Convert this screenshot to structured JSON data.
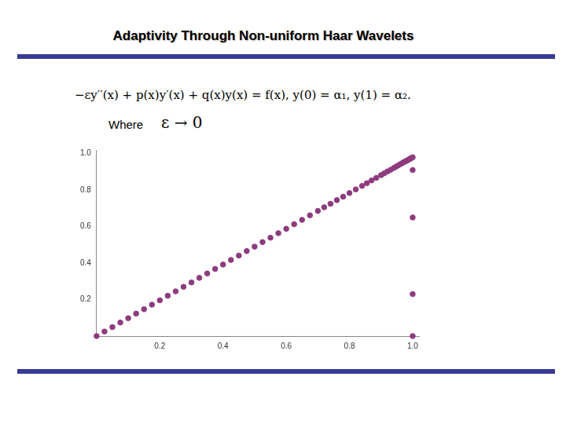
{
  "slide": {
    "title": "Adaptivity Through Non-uniform Haar Wavelets",
    "equation": "−εy′′(x) + p(x)y′(x) + q(x)y(x) = f(x),     y(0) = α₁, y(1) = α₂.",
    "where_label": "Where",
    "where_expr": "ε → 0"
  },
  "chart_data": {
    "type": "scatter",
    "color": "#8e3b7e",
    "marker": "circle",
    "grid": false,
    "x": [
      0,
      0.025,
      0.05,
      0.075,
      0.1,
      0.125,
      0.15,
      0.175,
      0.2,
      0.225,
      0.25,
      0.275,
      0.3,
      0.325,
      0.35,
      0.375,
      0.4,
      0.425,
      0.45,
      0.475,
      0.5,
      0.525,
      0.55,
      0.575,
      0.6,
      0.625,
      0.65,
      0.675,
      0.7,
      0.72,
      0.74,
      0.76,
      0.78,
      0.8,
      0.82,
      0.84,
      0.855,
      0.87,
      0.885,
      0.9,
      0.91,
      0.92,
      0.93,
      0.94,
      0.948,
      0.955,
      0.962,
      0.968,
      0.973,
      0.977,
      0.981,
      0.985,
      0.988,
      0.991,
      0.994,
      0.997,
      1,
      1,
      1,
      1,
      1
    ],
    "values": [
      0,
      0.025,
      0.049,
      0.074,
      0.098,
      0.123,
      0.147,
      0.172,
      0.196,
      0.221,
      0.245,
      0.27,
      0.294,
      0.319,
      0.343,
      0.368,
      0.392,
      0.417,
      0.441,
      0.466,
      0.49,
      0.515,
      0.539,
      0.564,
      0.588,
      0.613,
      0.637,
      0.662,
      0.686,
      0.706,
      0.725,
      0.745,
      0.764,
      0.784,
      0.804,
      0.823,
      0.838,
      0.853,
      0.867,
      0.882,
      0.892,
      0.902,
      0.911,
      0.921,
      0.929,
      0.936,
      0.943,
      0.949,
      0.954,
      0.957,
      0.961,
      0.965,
      0.968,
      0.971,
      0.974,
      0.977,
      0.98,
      0.91,
      0.65,
      0.23,
      0
    ],
    "xlim": [
      0,
      1.02
    ],
    "xticks": [
      0.2,
      0.4,
      0.6,
      0.8,
      {
        "value": 1,
        "label": "1.0"
      }
    ],
    "ylim": [
      0,
      1.02
    ],
    "yticks": [
      0.2,
      0.4,
      0.6,
      0.8,
      {
        "value": 1,
        "label": "1.0"
      }
    ]
  }
}
